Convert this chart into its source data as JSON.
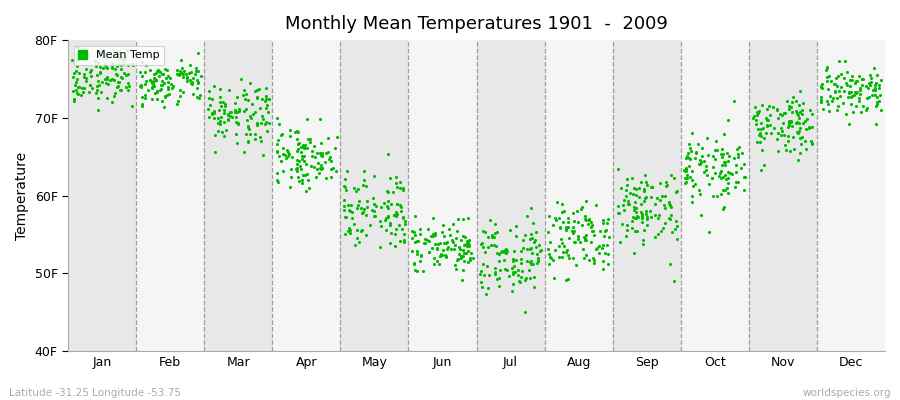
{
  "title": "Monthly Mean Temperatures 1901  -  2009",
  "ylabel": "Temperature",
  "xlabel_months": [
    "Jan",
    "Feb",
    "Mar",
    "Apr",
    "May",
    "Jun",
    "Jul",
    "Aug",
    "Sep",
    "Oct",
    "Nov",
    "Dec"
  ],
  "ylim": [
    40,
    80
  ],
  "yticks": [
    40,
    50,
    60,
    70,
    80
  ],
  "ytick_labels": [
    "40F",
    "50F",
    "60F",
    "70F",
    "80F"
  ],
  "dot_color": "#00bb00",
  "background_color": "#f2f2f2",
  "band_light": "#f5f5f5",
  "band_dark": "#e8e8e8",
  "legend_label": "Mean Temp",
  "footer_left": "Latitude -31.25 Longitude -53.75",
  "footer_right": "worldspecies.org",
  "mean_temps_F": [
    75.2,
    74.8,
    70.5,
    65.0,
    58.5,
    53.5,
    52.0,
    54.5,
    58.5,
    63.5,
    69.0,
    73.5
  ],
  "spread_F": [
    1.5,
    1.5,
    2.0,
    2.0,
    2.5,
    2.0,
    2.5,
    2.5,
    2.5,
    2.5,
    2.0,
    1.8
  ],
  "n_years": 109,
  "dot_size": 5
}
